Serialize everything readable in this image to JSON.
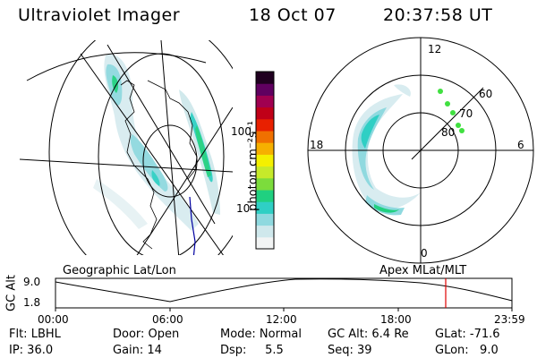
{
  "header": {
    "instrument": "Ultraviolet Imager",
    "date": "18 Oct 07",
    "time": "20:37:58 UT"
  },
  "left_panel": {
    "caption": "Geographic Lat/Lon"
  },
  "right_panel": {
    "caption": "Apex MLat/MLT",
    "mlt_labels": [
      "12",
      "18",
      "6",
      "0"
    ],
    "mlat_labels": [
      "60",
      "70",
      "80"
    ]
  },
  "colorbar": {
    "unit_label": "photon cm⁻²s⁻¹",
    "tick_labels": [
      "100",
      "10"
    ],
    "scale": "log",
    "colors": [
      "#f2f4f4",
      "#cfe8ec",
      "#8fd9df",
      "#2fcfc4",
      "#20d080",
      "#7cdc3c",
      "#c6ea2a",
      "#f4f000",
      "#f6b000",
      "#f07000",
      "#e82000",
      "#c00018",
      "#a00050",
      "#600060",
      "#200020"
    ]
  },
  "altitude_strip": {
    "axis_label": "GC Alt",
    "y_labels": [
      "9.0",
      "1.8"
    ],
    "x_labels": [
      "00:00",
      "06:00",
      "12:00",
      "18:00",
      "23:59"
    ],
    "marker_color": "#e00000"
  },
  "footer": {
    "rows": [
      [
        "Flt: LBHL",
        "Door: Open",
        "Mode: Normal",
        "GC Alt: 6.4 Re",
        "GLat: -71.6"
      ],
      [
        "IP: 36.0",
        "Gain: 14",
        "Dsp:     5.5",
        "Seq: 39",
        "GLon:   9.0"
      ]
    ]
  },
  "colors": {
    "aurora_faint": "#d8ecf0",
    "aurora_mid": "#8fd9df",
    "aurora_bright": "#2fcfc4",
    "aurora_peak": "#20d080",
    "satellite_track": "#40e040",
    "coast": "#0000a0"
  }
}
